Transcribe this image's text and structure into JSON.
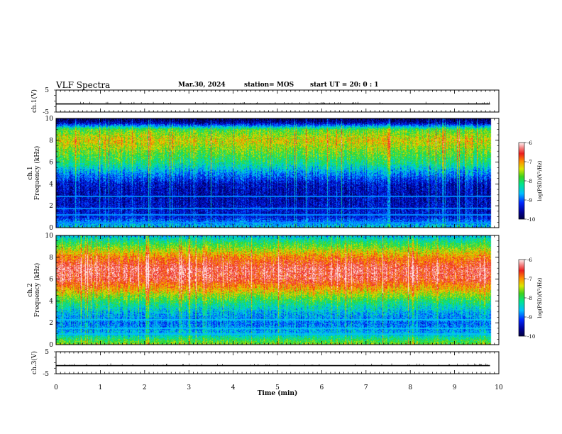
{
  "header": {
    "title": "VLF Spectra",
    "date": "Mar.30, 2024",
    "station": "station= MOS",
    "start": "start  UT =   20: 0  : 1"
  },
  "chart_data": [
    {
      "type": "line",
      "panel": "ch1",
      "ylabel": "ch.1(V)",
      "ylim": [
        -5,
        5
      ],
      "yticks": [
        "5",
        "-5"
      ],
      "x": [
        0,
        9.8
      ],
      "values": [
        -1.3,
        -1.3
      ]
    },
    {
      "type": "heatmap",
      "panel": "ch1-spectrogram",
      "ylabel_line1": "ch.1",
      "ylabel_line2": "Frequency (kHz)",
      "ylim": [
        0,
        10
      ],
      "yticks": [
        "0",
        "2",
        "4",
        "6",
        "8",
        "10"
      ],
      "xlim": [
        0,
        9.8
      ],
      "colorbar": {
        "label": "log(PSD)(V²/Hz)",
        "range": [
          -10,
          -6
        ],
        "ticks": [
          "-6",
          "-7",
          "-8",
          "-9",
          "-10"
        ]
      },
      "profile_freq_khz": [
        0,
        0.5,
        1,
        2,
        3,
        4,
        5,
        6,
        7,
        8,
        9,
        9.6,
        10
      ],
      "profile_log_psd": [
        -8.5,
        -8.8,
        -9.3,
        -9.4,
        -9.5,
        -9.4,
        -8.8,
        -8.1,
        -7.7,
        -7.3,
        -7.8,
        -9.5,
        -9.9
      ]
    },
    {
      "type": "heatmap",
      "panel": "ch2-spectrogram",
      "ylabel_line1": "ch.2",
      "ylabel_line2": "Frequency (kHz)",
      "ylim": [
        0,
        10
      ],
      "yticks": [
        "0",
        "2",
        "4",
        "6",
        "8",
        "10"
      ],
      "xlim": [
        0,
        9.8
      ],
      "colorbar": {
        "label": "log(PSD)(V²/Hz)",
        "range": [
          -10,
          -6
        ],
        "ticks": [
          "-6",
          "-7",
          "-8",
          "-9",
          "-10"
        ]
      },
      "profile_freq_khz": [
        0,
        0.5,
        1,
        2,
        3,
        4,
        5,
        6,
        7,
        8,
        9,
        9.6,
        10
      ],
      "profile_log_psd": [
        -7.6,
        -8.0,
        -8.6,
        -8.9,
        -8.6,
        -8.0,
        -7.2,
        -6.5,
        -6.4,
        -6.9,
        -7.7,
        -8.2,
        -8.6
      ]
    },
    {
      "type": "line",
      "panel": "ch3",
      "ylabel": "ch.3(V)",
      "ylim": [
        -5,
        5
      ],
      "yticks": [
        "5",
        "-5"
      ],
      "x": [
        0,
        9.8
      ],
      "values": [
        -1.3,
        -1.3
      ]
    }
  ],
  "xaxis": {
    "label": "Time  (min)",
    "xlim": [
      0,
      10
    ],
    "ticks": [
      "0",
      "1",
      "2",
      "3",
      "4",
      "5",
      "6",
      "7",
      "8",
      "9",
      "10"
    ]
  }
}
